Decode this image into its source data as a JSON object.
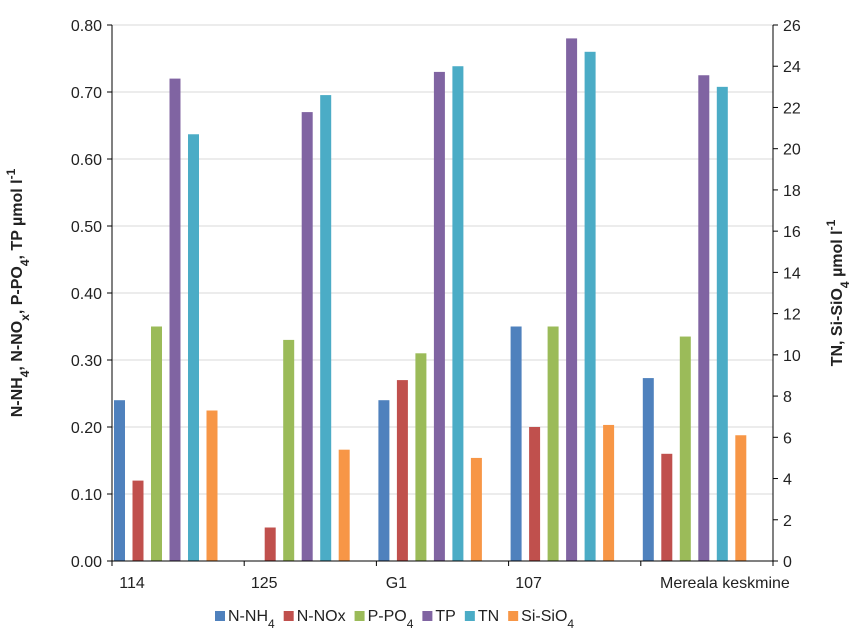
{
  "chart_data": {
    "type": "bar",
    "categories": [
      "114",
      "125",
      "G1",
      "107",
      "Mereala keskmine"
    ],
    "y_left": {
      "label_parts": [
        {
          "t": "N-NH",
          "sub": false
        },
        {
          "t": "4",
          "sub": true
        },
        {
          "t": ", N-NO",
          "sub": false
        },
        {
          "t": "x",
          "sub": true
        },
        {
          "t": ", P-PO",
          "sub": false
        },
        {
          "t": "4",
          "sub": true
        },
        {
          "t": ", TP µmol l",
          "sub": false
        },
        {
          "t": "-1",
          "sup": true
        }
      ],
      "min": 0,
      "max": 0.8,
      "ticks": [
        "0.00",
        "0.10",
        "0.20",
        "0.30",
        "0.40",
        "0.50",
        "0.60",
        "0.70",
        "0.80"
      ]
    },
    "y_right": {
      "label_parts": [
        {
          "t": "TN, Si-SiO",
          "sub": false
        },
        {
          "t": "4",
          "sub": true
        },
        {
          "t": " µmol l",
          "sub": false
        },
        {
          "t": "-1",
          "sup": true
        }
      ],
      "min": 0,
      "max": 26,
      "ticks": [
        "0",
        "2",
        "4",
        "6",
        "8",
        "10",
        "12",
        "14",
        "16",
        "18",
        "20",
        "22",
        "24",
        "26"
      ]
    },
    "series": [
      {
        "name": "N-NH4",
        "legend_parts": [
          {
            "t": "N-NH"
          },
          {
            "t": "4",
            "sub": true
          }
        ],
        "axis": "left",
        "color": "#4f81bd",
        "values": [
          0.24,
          null,
          0.24,
          0.35,
          0.273
        ]
      },
      {
        "name": "N-NOx",
        "legend_parts": [
          {
            "t": "N-NOx"
          }
        ],
        "axis": "left",
        "color": "#c0504d",
        "values": [
          0.12,
          0.05,
          0.27,
          0.2,
          0.16
        ]
      },
      {
        "name": "P-PO4",
        "legend_parts": [
          {
            "t": "P-PO"
          },
          {
            "t": "4",
            "sub": true
          }
        ],
        "axis": "left",
        "color": "#9bbb59",
        "values": [
          0.35,
          0.33,
          0.31,
          0.35,
          0.335
        ]
      },
      {
        "name": "TP",
        "legend_parts": [
          {
            "t": "TP"
          }
        ],
        "axis": "left",
        "color": "#8064a2",
        "values": [
          0.72,
          0.67,
          0.73,
          0.78,
          0.725
        ]
      },
      {
        "name": "TN",
        "legend_parts": [
          {
            "t": "TN"
          }
        ],
        "axis": "right",
        "color": "#4bacc6",
        "values": [
          20.7,
          22.6,
          24.0,
          24.7,
          23.0
        ]
      },
      {
        "name": "Si-SiO4",
        "legend_parts": [
          {
            "t": "Si-SiO"
          },
          {
            "t": "4",
            "sub": true
          }
        ],
        "axis": "right",
        "color": "#f79646",
        "values": [
          7.3,
          5.4,
          5.0,
          6.6,
          6.1
        ]
      }
    ],
    "grid": true,
    "legend_position": "bottom"
  }
}
